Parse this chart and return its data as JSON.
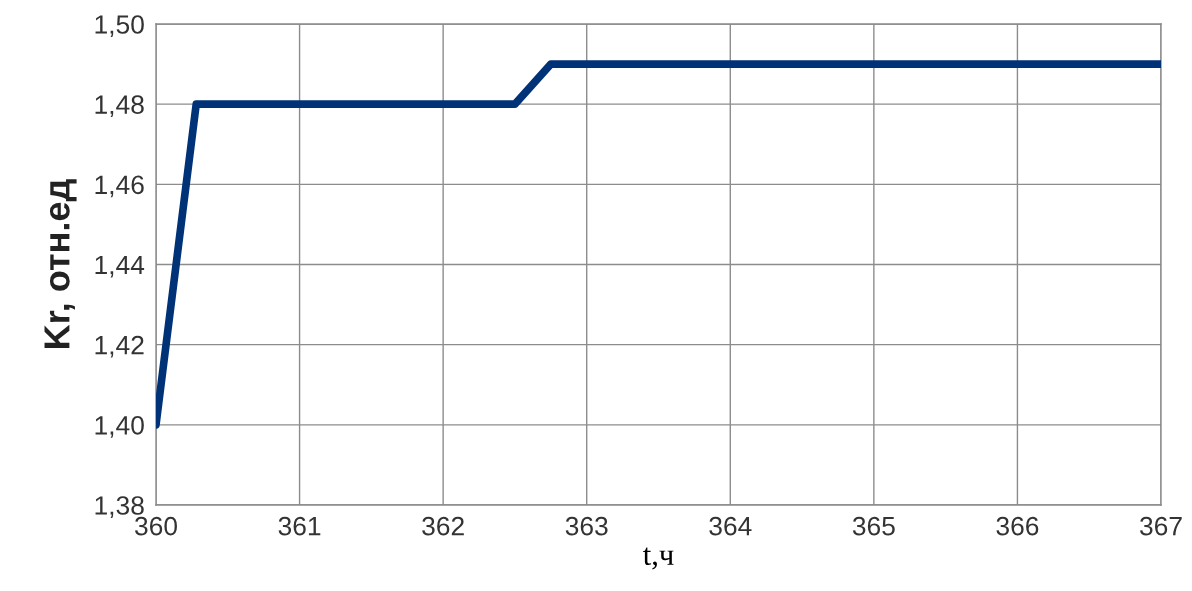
{
  "chart_data": {
    "type": "line",
    "xlabel": "t,ч",
    "ylabel": "Kr, отн.ед",
    "series": [
      {
        "color": "#003278",
        "x": [
          360,
          360.28,
          362.5,
          362.75,
          367
        ],
        "values": [
          1.4,
          1.48,
          1.48,
          1.49,
          1.49
        ]
      }
    ],
    "xlim": [
      360,
      367
    ],
    "xticks": [
      360,
      361,
      362,
      363,
      364,
      365,
      366,
      367
    ],
    "ylim": [
      1.38,
      1.5
    ],
    "yticks": [
      {
        "value": 1.38,
        "label": "1,38"
      },
      {
        "value": 1.4,
        "label": "1,40"
      },
      {
        "value": 1.42,
        "label": "1,42"
      },
      {
        "value": 1.44,
        "label": "1,44"
      },
      {
        "value": 1.46,
        "label": "1,46"
      },
      {
        "value": 1.48,
        "label": "1,48"
      },
      {
        "value": 1.5,
        "label": "1,50"
      }
    ],
    "grid": true
  }
}
